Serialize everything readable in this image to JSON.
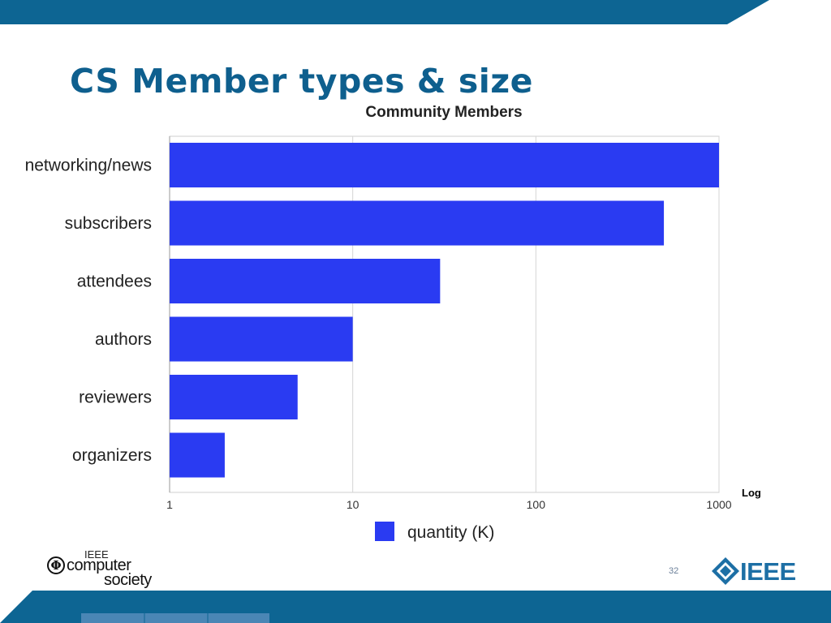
{
  "slide": {
    "title": "CS Member types & size",
    "log_note": "Log",
    "page_number": "32",
    "logos": {
      "cs_ieee": "IEEE",
      "cs_line1": "computer",
      "cs_line2": "society",
      "ieee": "IEEE"
    }
  },
  "colors": {
    "title": "#0e5f8e",
    "banner": "#0d6593",
    "bar": "#2a3bf2"
  },
  "chart_data": {
    "type": "bar",
    "orientation": "horizontal",
    "title": "Community Members",
    "categories": [
      "networking/news",
      "subscribers",
      "attendees",
      "authors",
      "reviewers",
      "organizers"
    ],
    "series": [
      {
        "name": "quantity (K)",
        "values": [
          1000,
          500,
          30,
          10,
          5,
          2
        ]
      }
    ],
    "x_scale": "log",
    "xlim": [
      1,
      1000
    ],
    "x_ticks": [
      "1",
      "10",
      "100",
      "1000"
    ],
    "grid": true,
    "legend": "bottom"
  }
}
